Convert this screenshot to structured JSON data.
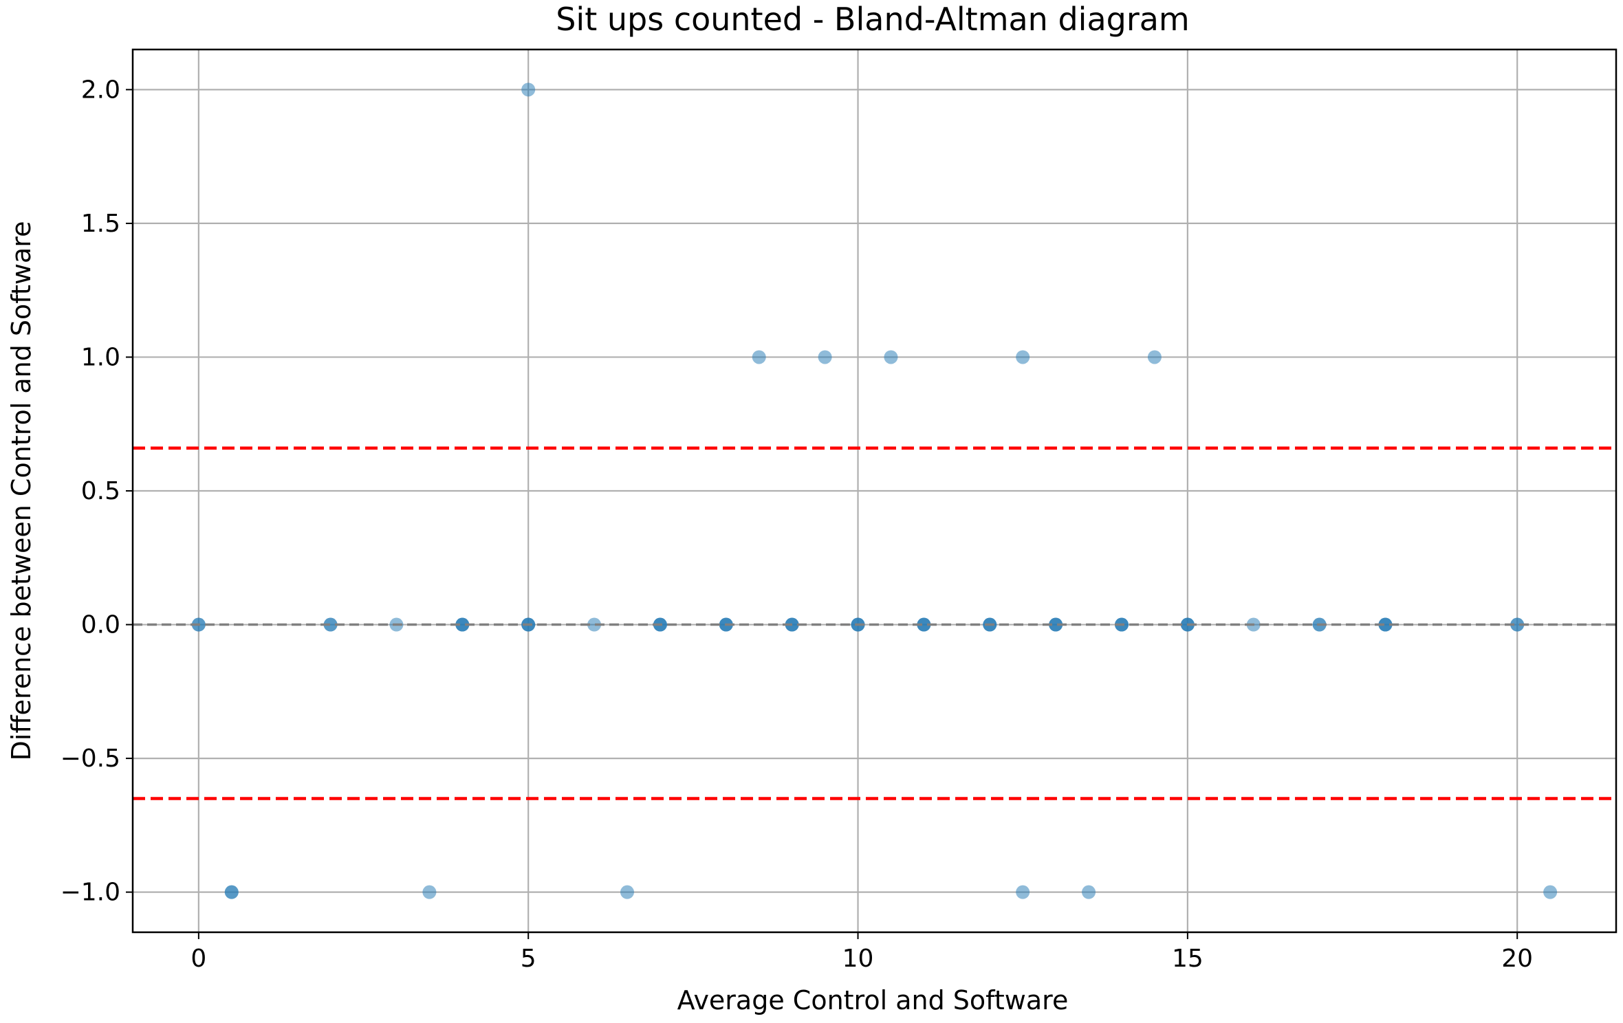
{
  "chart_data": {
    "type": "scatter",
    "title": "Sit ups counted - Bland-Altman diagram",
    "xlabel": "Average Control and Software",
    "ylabel": "Difference between Control and Software",
    "xlim": [
      -1.0,
      21.5
    ],
    "ylim": [
      -1.15,
      2.15
    ],
    "xticks": [
      0,
      5,
      10,
      15,
      20
    ],
    "xtick_labels": [
      "0",
      "5",
      "10",
      "15",
      "20"
    ],
    "yticks": [
      -1.0,
      -0.5,
      0.0,
      0.5,
      1.0,
      1.5,
      2.0
    ],
    "ytick_labels": [
      "−1.0",
      "−0.5",
      "0.0",
      "0.5",
      "1.0",
      "1.5",
      "2.0"
    ],
    "grid": true,
    "series": [
      {
        "color": "#1f77b4",
        "alpha": 0.5,
        "points": [
          {
            "x": 0,
            "y": 0
          },
          {
            "x": 0,
            "y": 0
          },
          {
            "x": 0.5,
            "y": -1
          },
          {
            "x": 0.5,
            "y": -1
          },
          {
            "x": 2,
            "y": 0
          },
          {
            "x": 2,
            "y": 0
          },
          {
            "x": 3,
            "y": 0
          },
          {
            "x": 3.5,
            "y": -1
          },
          {
            "x": 4,
            "y": 0
          },
          {
            "x": 4,
            "y": 0
          },
          {
            "x": 4,
            "y": 0
          },
          {
            "x": 5,
            "y": 0
          },
          {
            "x": 5,
            "y": 0
          },
          {
            "x": 5,
            "y": 0
          },
          {
            "x": 5,
            "y": 2
          },
          {
            "x": 6,
            "y": 0
          },
          {
            "x": 6.5,
            "y": -1
          },
          {
            "x": 7,
            "y": 0
          },
          {
            "x": 7,
            "y": 0
          },
          {
            "x": 7,
            "y": 0
          },
          {
            "x": 8,
            "y": 0
          },
          {
            "x": 8,
            "y": 0
          },
          {
            "x": 8,
            "y": 0
          },
          {
            "x": 8.5,
            "y": 1
          },
          {
            "x": 9,
            "y": 0
          },
          {
            "x": 9,
            "y": 0
          },
          {
            "x": 9,
            "y": 0
          },
          {
            "x": 9.5,
            "y": 1
          },
          {
            "x": 10,
            "y": 0
          },
          {
            "x": 10,
            "y": 0
          },
          {
            "x": 10,
            "y": 0
          },
          {
            "x": 10.5,
            "y": 1
          },
          {
            "x": 11,
            "y": 0
          },
          {
            "x": 11,
            "y": 0
          },
          {
            "x": 11,
            "y": 0
          },
          {
            "x": 12,
            "y": 0
          },
          {
            "x": 12,
            "y": 0
          },
          {
            "x": 12,
            "y": 0
          },
          {
            "x": 12.5,
            "y": 1
          },
          {
            "x": 12.5,
            "y": -1
          },
          {
            "x": 13,
            "y": 0
          },
          {
            "x": 13,
            "y": 0
          },
          {
            "x": 13,
            "y": 0
          },
          {
            "x": 13.5,
            "y": -1
          },
          {
            "x": 14,
            "y": 0
          },
          {
            "x": 14,
            "y": 0
          },
          {
            "x": 14,
            "y": 0
          },
          {
            "x": 14.5,
            "y": 1
          },
          {
            "x": 15,
            "y": 0
          },
          {
            "x": 15,
            "y": 0
          },
          {
            "x": 15,
            "y": 0
          },
          {
            "x": 16,
            "y": 0
          },
          {
            "x": 17,
            "y": 0
          },
          {
            "x": 17,
            "y": 0
          },
          {
            "x": 18,
            "y": 0
          },
          {
            "x": 18,
            "y": 0
          },
          {
            "x": 18,
            "y": 0
          },
          {
            "x": 20,
            "y": 0
          },
          {
            "x": 20,
            "y": 0
          },
          {
            "x": 20.5,
            "y": -1
          }
        ]
      }
    ],
    "reference_lines": [
      {
        "kind": "mean",
        "y": 0.0,
        "color": "#808080",
        "style": "dashed"
      },
      {
        "kind": "upper-limit",
        "y": 0.66,
        "color": "#ff0000",
        "style": "dashed"
      },
      {
        "kind": "lower-limit",
        "y": -0.65,
        "color": "#ff0000",
        "style": "dashed"
      }
    ]
  }
}
